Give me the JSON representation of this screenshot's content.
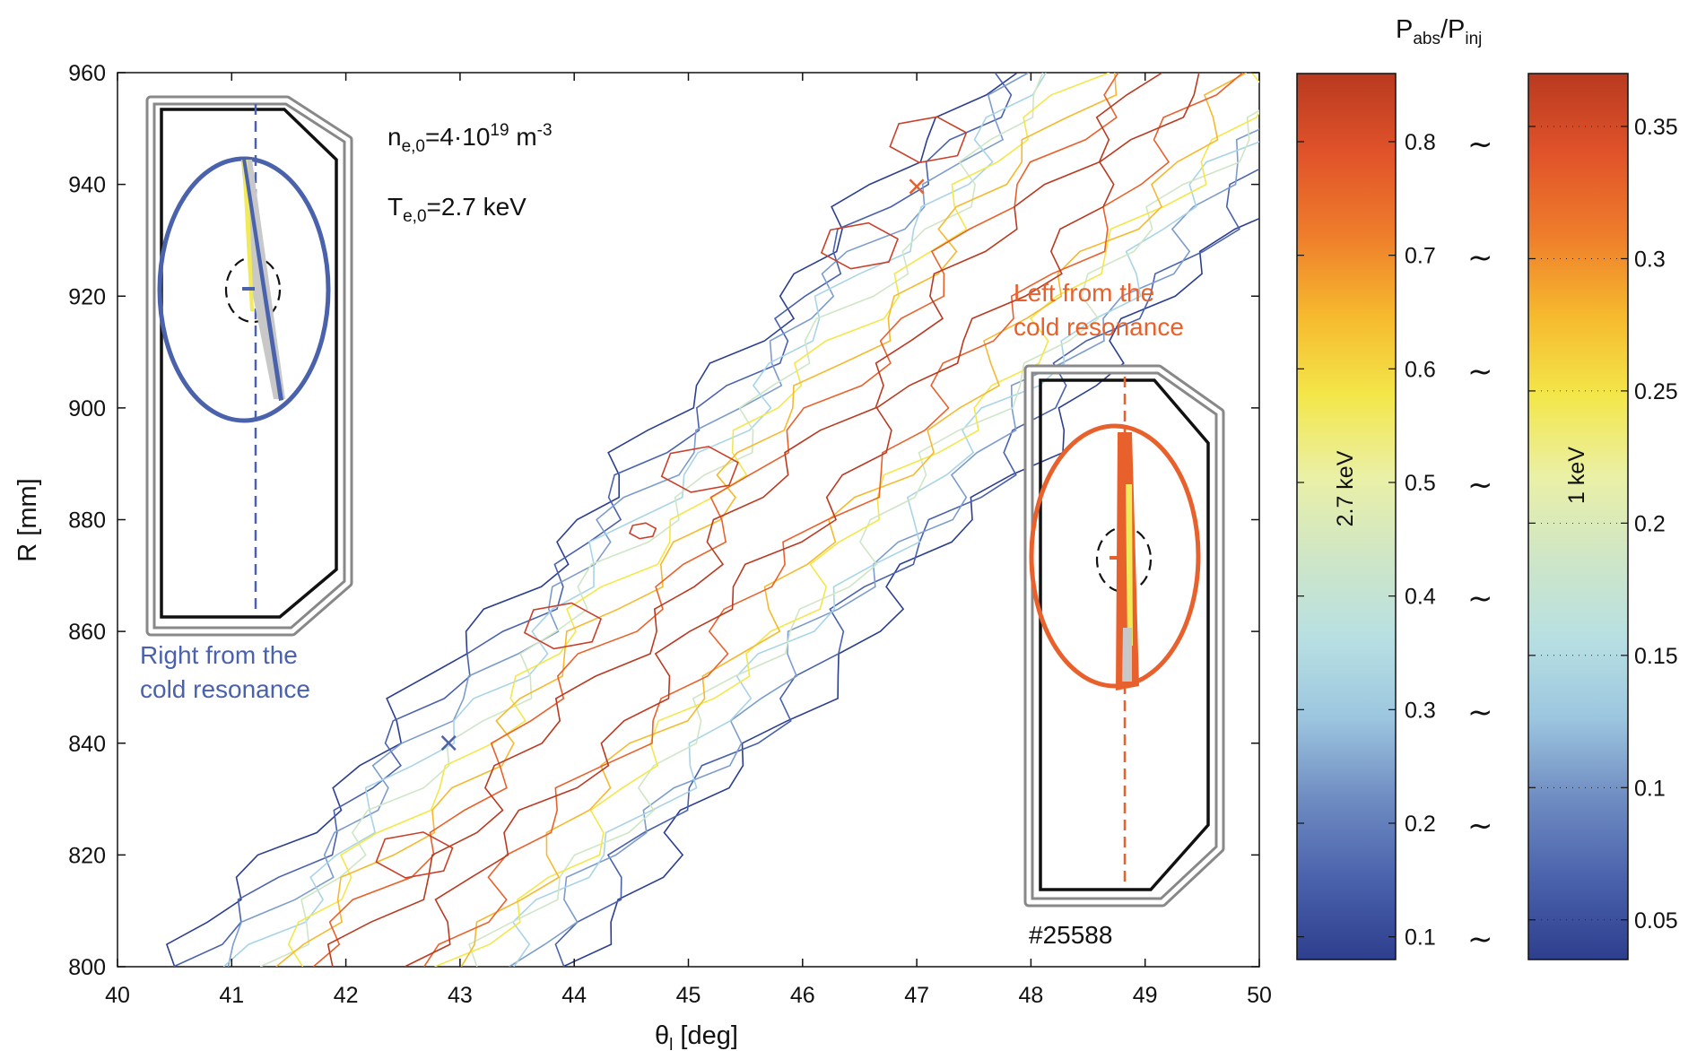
{
  "chart_data": {
    "type": "contour",
    "shot": "#25588",
    "x_axis": {
      "label_main": "θ",
      "label_sub": "l",
      "label_rest": " [deg]",
      "range": [
        40,
        50
      ],
      "ticks": [
        40,
        41,
        42,
        43,
        44,
        45,
        46,
        47,
        48,
        49,
        50
      ]
    },
    "y_axis": {
      "label": "R [mm]",
      "range": [
        800,
        960
      ],
      "ticks": [
        800,
        820,
        840,
        860,
        880,
        900,
        920,
        940,
        960
      ]
    },
    "params": {
      "density": {
        "pre": "n",
        "sub": "e,0",
        "mid": "=4·10",
        "sup": "19",
        "post": " m",
        "sup2": "-3"
      },
      "temperature": {
        "pre": "T",
        "sub": "e,0",
        "post": "=2.7 keV"
      }
    },
    "colorbar_title": {
      "main": "P",
      "sub1": "abs",
      "slash": "/P",
      "sub2": "inj"
    },
    "colorbars": [
      {
        "label": "2.7 keV",
        "range": [
          0.08,
          0.86
        ],
        "ticks": [
          0.1,
          0.2,
          0.3,
          0.4,
          0.5,
          0.6,
          0.7,
          0.8
        ]
      },
      {
        "label": "1 keV",
        "range": [
          0.035,
          0.37
        ],
        "ticks": [
          0.05,
          0.1,
          0.15,
          0.2,
          0.25,
          0.3,
          0.35
        ]
      }
    ],
    "tilde": "~",
    "markers": [
      {
        "x": 42.9,
        "R": 840,
        "symbol": "×",
        "color": "#4a62ac"
      },
      {
        "x": 47.0,
        "R": 939.5,
        "symbol": "×",
        "color": "#e8612c"
      }
    ],
    "insets": [
      {
        "label_lines": [
          "Right from the",
          "cold resonance"
        ],
        "color": "#4a62ac"
      },
      {
        "label_lines": [
          "Left from the",
          "cold resonance"
        ],
        "color": "#e8612c"
      }
    ],
    "contour_levels": [
      {
        "level": 0.1,
        "color": "#2c3f8f"
      },
      {
        "level": 0.2,
        "color": "#4a62ac"
      },
      {
        "level": 0.3,
        "color": "#7c9ccc"
      },
      {
        "level": 0.4,
        "color": "#a8d4e6"
      },
      {
        "level": 0.5,
        "color": "#cfe6c6"
      },
      {
        "level": 0.6,
        "color": "#f3e74a"
      },
      {
        "level": 0.7,
        "color": "#f6b92e"
      },
      {
        "level": 0.8,
        "color": "#e8612c"
      },
      {
        "level": 0.85,
        "color": "#b93a20"
      }
    ],
    "colormap": [
      "#2e3e8e",
      "#4a62ac",
      "#6f8cc2",
      "#9cc6e0",
      "#b8e0e2",
      "#cfe6c6",
      "#eaf0a6",
      "#f3e74a",
      "#f6b92e",
      "#ee7d2b",
      "#e1532a",
      "#b93a20"
    ],
    "grid": false,
    "legend": "none"
  }
}
